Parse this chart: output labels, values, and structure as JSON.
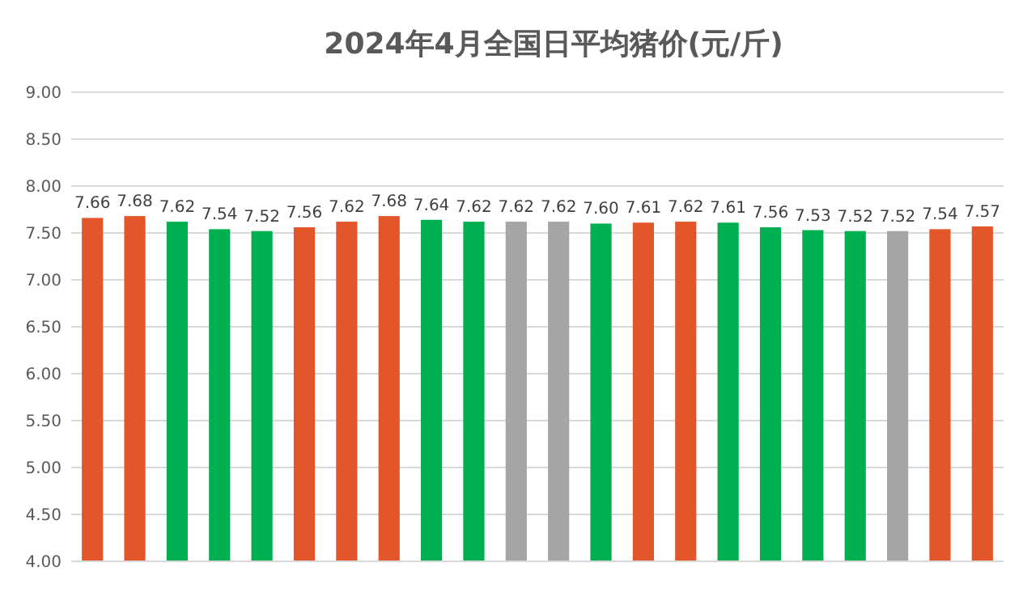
{
  "chart_data": {
    "type": "bar",
    "title": "2024年4月全国日平均猪价(元/斤)",
    "categories": [
      null,
      null,
      null,
      null,
      null,
      null,
      null,
      null,
      null,
      null,
      null,
      null,
      null,
      null,
      null,
      null,
      null,
      null,
      null,
      null,
      null,
      null
    ],
    "values": [
      7.66,
      7.68,
      7.62,
      7.54,
      7.52,
      7.56,
      7.62,
      7.68,
      7.64,
      7.62,
      7.62,
      7.62,
      7.6,
      7.61,
      7.62,
      7.61,
      7.56,
      7.53,
      7.52,
      7.52,
      7.54,
      7.57
    ],
    "value_labels": [
      "7.66",
      "7.68",
      "7.62",
      "7.54",
      "7.52",
      "7.56",
      "7.62",
      "7.68",
      "7.64",
      "7.62",
      "7.62",
      "7.62",
      "7.60",
      "7.61",
      "7.62",
      "7.61",
      "7.56",
      "7.53",
      "7.52",
      "7.52",
      "7.54",
      "7.57"
    ],
    "colors": [
      "#e2562a",
      "#e2562a",
      "#00b050",
      "#00b050",
      "#00b050",
      "#e2562a",
      "#e2562a",
      "#e2562a",
      "#00b050",
      "#00b050",
      "#a5a5a5",
      "#a5a5a5",
      "#00b050",
      "#e2562a",
      "#e2562a",
      "#00b050",
      "#00b050",
      "#00b050",
      "#00b050",
      "#a5a5a5",
      "#e2562a",
      "#e2562a"
    ],
    "ylim": [
      4,
      9
    ],
    "yticks": [
      {
        "value": 4,
        "label": "4.00"
      },
      {
        "value": 4.5,
        "label": "4.50"
      },
      {
        "value": 5,
        "label": "5.00"
      },
      {
        "value": 5.5,
        "label": "5.50"
      },
      {
        "value": 6,
        "label": "6.00"
      },
      {
        "value": 6.5,
        "label": "6.50"
      },
      {
        "value": 7,
        "label": "7.00"
      },
      {
        "value": 7.5,
        "label": "7.50"
      },
      {
        "value": 8,
        "label": "8.00"
      },
      {
        "value": 8.5,
        "label": "8.50"
      },
      {
        "value": 9,
        "label": "9.00"
      }
    ],
    "grid": "y"
  }
}
